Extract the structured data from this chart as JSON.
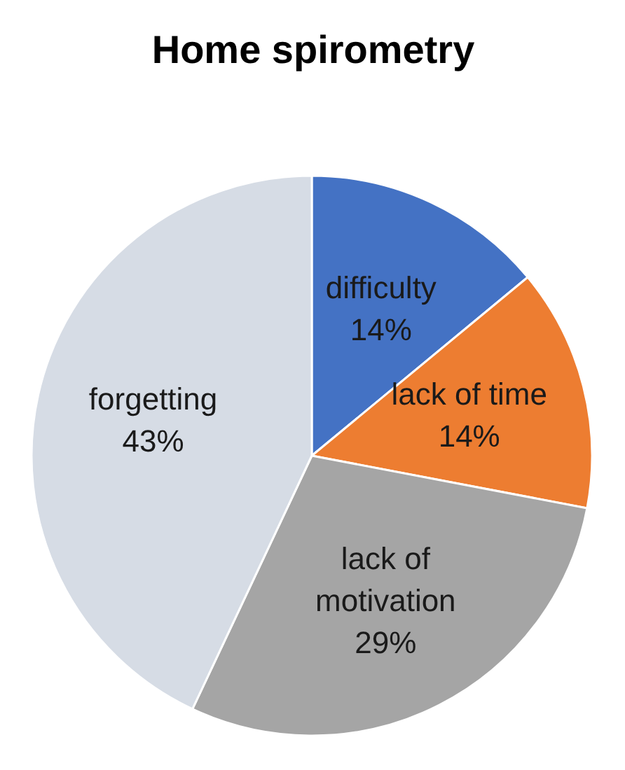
{
  "chart_data": {
    "type": "pie",
    "title": "Home spirometry",
    "categories": [
      "difficulty",
      "lack of time",
      "lack of motivation",
      "forgetting"
    ],
    "values": [
      14,
      14,
      29,
      43
    ],
    "value_labels": [
      "14%",
      "14%",
      "29%",
      "43%"
    ],
    "colors": [
      "#4472c4",
      "#ed7d31",
      "#a5a5a5",
      "#d6dce5"
    ]
  }
}
